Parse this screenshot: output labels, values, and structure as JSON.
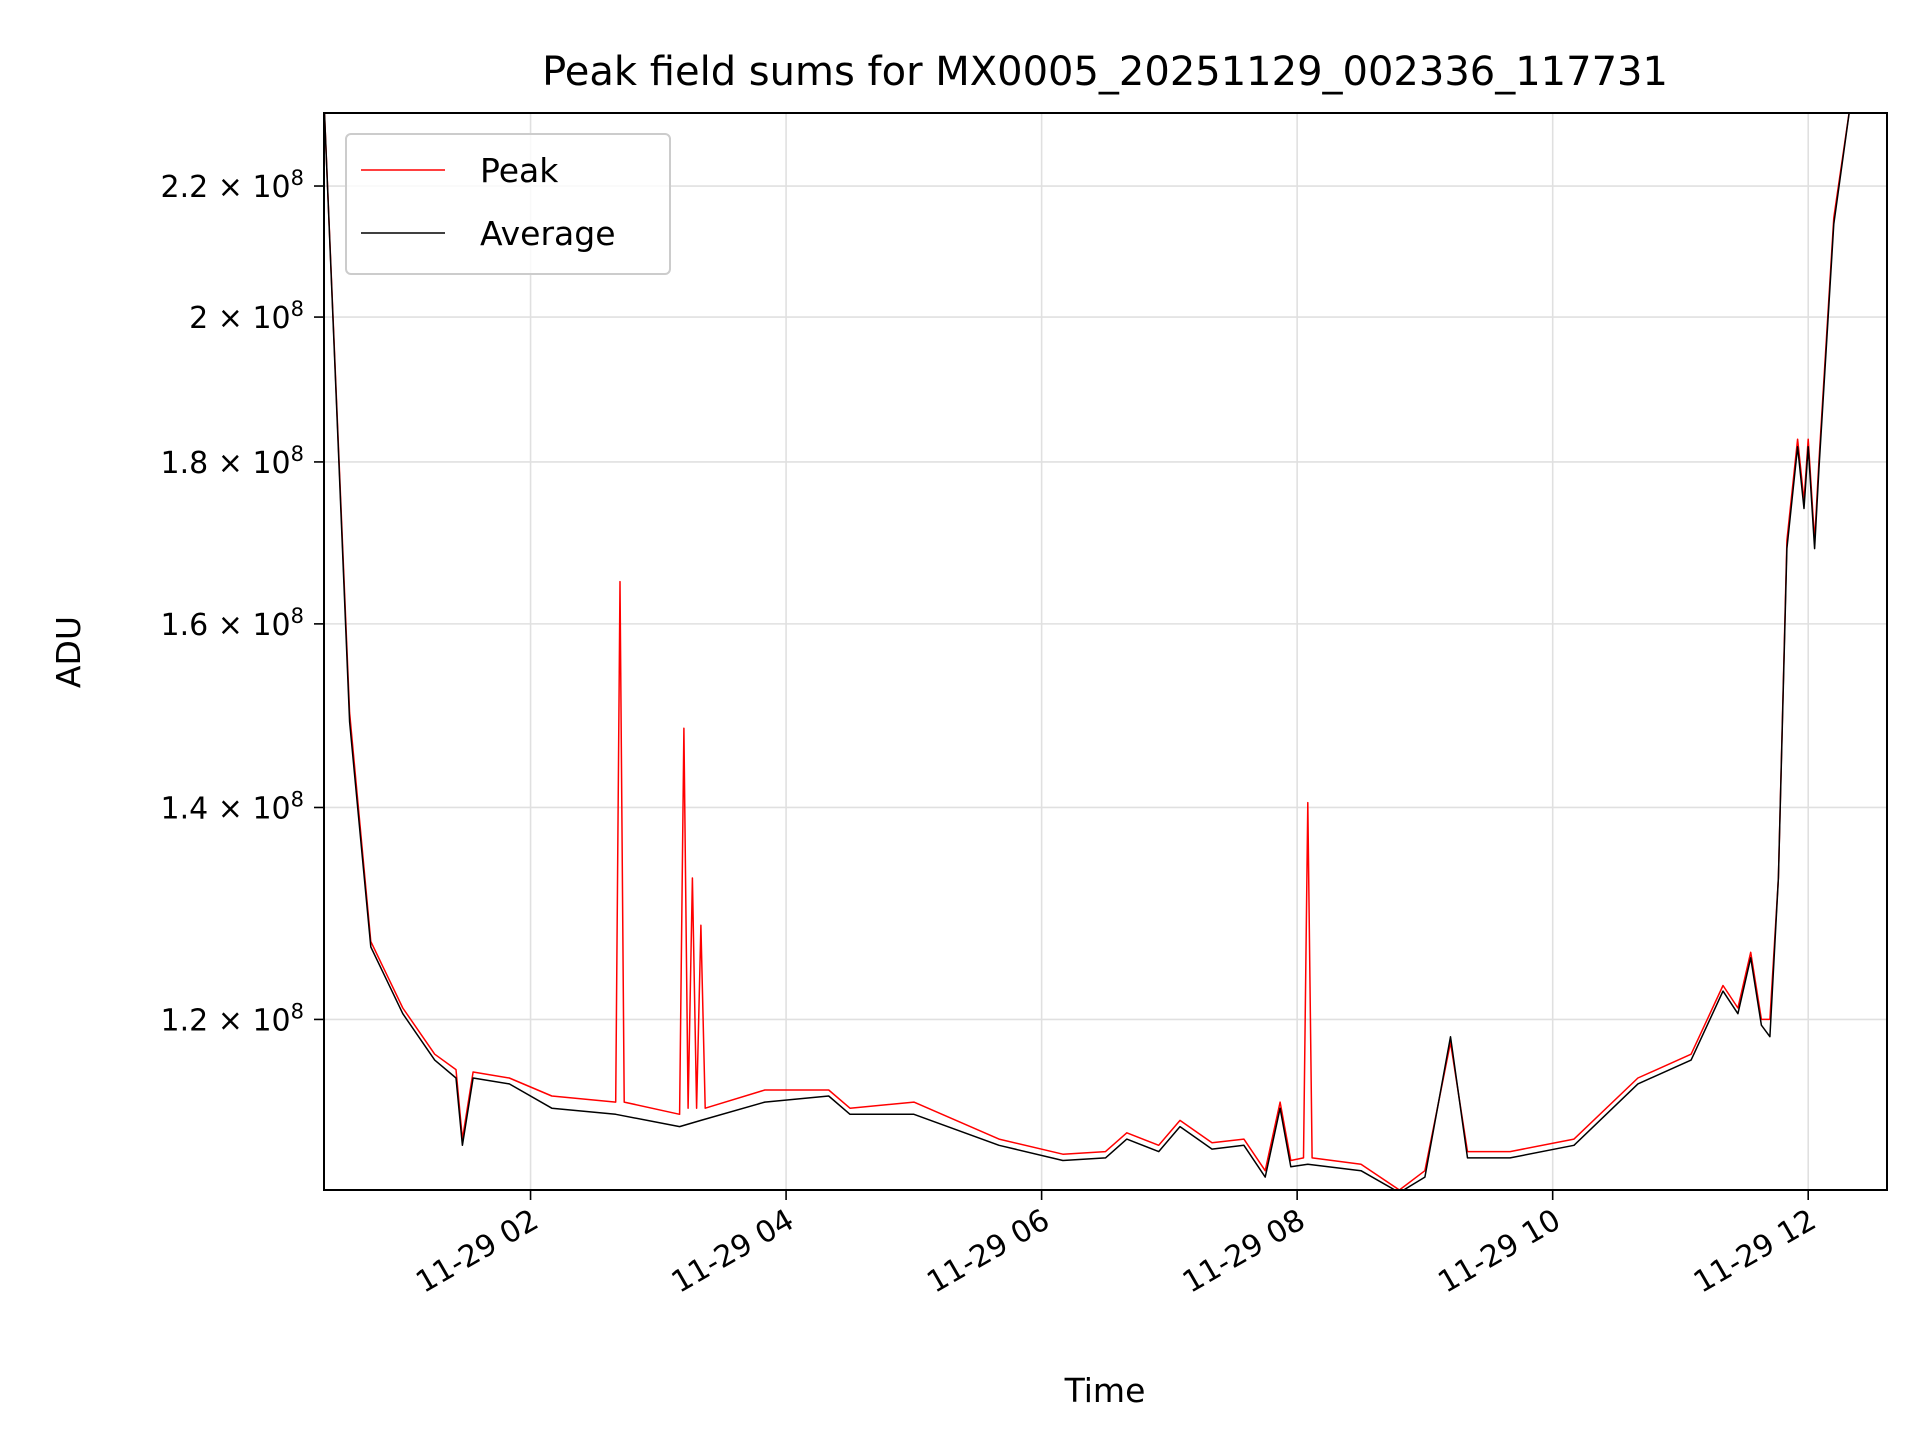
{
  "chart_data": {
    "type": "line",
    "title": "Peak field sums for MX0005_20251129_002336_117731",
    "xlabel": "Time",
    "ylabel": "ADU",
    "y_scale": "log",
    "xlim": [
      "2025-11-29 00:23",
      "2025-11-29 12:37"
    ],
    "ylim": [
      106000000.0,
      232000000.0
    ],
    "x_ticks": [
      {
        "label": "11-29 02",
        "value": "2025-11-29 02:00"
      },
      {
        "label": "11-29 04",
        "value": "2025-11-29 04:00"
      },
      {
        "label": "11-29 06",
        "value": "2025-11-29 06:00"
      },
      {
        "label": "11-29 08",
        "value": "2025-11-29 08:00"
      },
      {
        "label": "11-29 10",
        "value": "2025-11-29 10:00"
      },
      {
        "label": "11-29 12",
        "value": "2025-11-29 12:00"
      }
    ],
    "y_ticks": [
      {
        "mantissa": "1.2",
        "value": 120000000.0
      },
      {
        "mantissa": "1.4",
        "value": 140000000.0
      },
      {
        "mantissa": "1.6",
        "value": 160000000.0
      },
      {
        "mantissa": "1.8",
        "value": 180000000.0
      },
      {
        "mantissa": "2",
        "value": 200000000.0
      },
      {
        "mantissa": "2.2",
        "value": 220000000.0
      }
    ],
    "grid": true,
    "legend_position": "top-left",
    "series": [
      {
        "name": "Peak",
        "color": "#ff0000",
        "points": [
          [
            "2025-11-29 00:23",
            234000000.0
          ],
          [
            "2025-11-29 00:35",
            150000000.0
          ],
          [
            "2025-11-29 00:45",
            127000000.0
          ],
          [
            "2025-11-29 01:00",
            121000000.0
          ],
          [
            "2025-11-29 01:15",
            117000000.0
          ],
          [
            "2025-11-29 01:25",
            115700000.0
          ],
          [
            "2025-11-29 01:28",
            110000000.0
          ],
          [
            "2025-11-29 01:33",
            115500000.0
          ],
          [
            "2025-11-29 01:50",
            115000000.0
          ],
          [
            "2025-11-29 02:10",
            113500000.0
          ],
          [
            "2025-11-29 02:40",
            113000000.0
          ],
          [
            "2025-11-29 02:42",
            165000000.0
          ],
          [
            "2025-11-29 02:44",
            113000000.0
          ],
          [
            "2025-11-29 03:10",
            112000000.0
          ],
          [
            "2025-11-29 03:12",
            148300000.0
          ],
          [
            "2025-11-29 03:14",
            112500000.0
          ],
          [
            "2025-11-29 03:16",
            133000000.0
          ],
          [
            "2025-11-29 03:18",
            112500000.0
          ],
          [
            "2025-11-29 03:20",
            128500000.0
          ],
          [
            "2025-11-29 03:22",
            112500000.0
          ],
          [
            "2025-11-29 03:50",
            114000000.0
          ],
          [
            "2025-11-29 04:20",
            114000000.0
          ],
          [
            "2025-11-29 04:30",
            112500000.0
          ],
          [
            "2025-11-29 05:00",
            113000000.0
          ],
          [
            "2025-11-29 05:40",
            110000000.0
          ],
          [
            "2025-11-29 06:10",
            108800000.0
          ],
          [
            "2025-11-29 06:30",
            109000000.0
          ],
          [
            "2025-11-29 06:40",
            110500000.0
          ],
          [
            "2025-11-29 06:55",
            109500000.0
          ],
          [
            "2025-11-29 07:05",
            111500000.0
          ],
          [
            "2025-11-29 07:20",
            109700000.0
          ],
          [
            "2025-11-29 07:35",
            110000000.0
          ],
          [
            "2025-11-29 07:45",
            107500000.0
          ],
          [
            "2025-11-29 07:52",
            113000000.0
          ],
          [
            "2025-11-29 07:57",
            108300000.0
          ],
          [
            "2025-11-29 08:03",
            108500000.0
          ],
          [
            "2025-11-29 08:05",
            140500000.0
          ],
          [
            "2025-11-29 08:07",
            108500000.0
          ],
          [
            "2025-11-29 08:30",
            108000000.0
          ],
          [
            "2025-11-29 08:48",
            106000000.0
          ],
          [
            "2025-11-29 09:00",
            107500000.0
          ],
          [
            "2025-11-29 09:12",
            118000000.0
          ],
          [
            "2025-11-29 09:20",
            109000000.0
          ],
          [
            "2025-11-29 09:40",
            109000000.0
          ],
          [
            "2025-11-29 10:10",
            110000000.0
          ],
          [
            "2025-11-29 10:40",
            115000000.0
          ],
          [
            "2025-11-29 11:05",
            117000000.0
          ],
          [
            "2025-11-29 11:20",
            123000000.0
          ],
          [
            "2025-11-29 11:27",
            121000000.0
          ],
          [
            "2025-11-29 11:33",
            126000000.0
          ],
          [
            "2025-11-29 11:38",
            120000000.0
          ],
          [
            "2025-11-29 11:42",
            120000000.0
          ],
          [
            "2025-11-29 11:46",
            133000000.0
          ],
          [
            "2025-11-29 11:50",
            170000000.0
          ],
          [
            "2025-11-29 11:55",
            183000000.0
          ],
          [
            "2025-11-29 11:58",
            175000000.0
          ],
          [
            "2025-11-29 12:00",
            183000000.0
          ],
          [
            "2025-11-29 12:03",
            170000000.0
          ],
          [
            "2025-11-29 12:05",
            180000000.0
          ],
          [
            "2025-11-29 12:12",
            215000000.0
          ],
          [
            "2025-11-29 12:20",
            234000000.0
          ]
        ]
      },
      {
        "name": "Average",
        "color": "#000000",
        "points": [
          [
            "2025-11-29 00:23",
            234000000.0
          ],
          [
            "2025-11-29 00:35",
            149000000.0
          ],
          [
            "2025-11-29 00:45",
            126500000.0
          ],
          [
            "2025-11-29 01:00",
            120500000.0
          ],
          [
            "2025-11-29 01:15",
            116500000.0
          ],
          [
            "2025-11-29 01:25",
            115000000.0
          ],
          [
            "2025-11-29 01:28",
            109500000.0
          ],
          [
            "2025-11-29 01:33",
            115000000.0
          ],
          [
            "2025-11-29 01:50",
            114500000.0
          ],
          [
            "2025-11-29 02:10",
            112500000.0
          ],
          [
            "2025-11-29 02:40",
            112000000.0
          ],
          [
            "2025-11-29 03:10",
            111000000.0
          ],
          [
            "2025-11-29 03:20",
            111500000.0
          ],
          [
            "2025-11-29 03:50",
            113000000.0
          ],
          [
            "2025-11-29 04:20",
            113500000.0
          ],
          [
            "2025-11-29 04:30",
            112000000.0
          ],
          [
            "2025-11-29 05:00",
            112000000.0
          ],
          [
            "2025-11-29 05:40",
            109500000.0
          ],
          [
            "2025-11-29 06:10",
            108300000.0
          ],
          [
            "2025-11-29 06:30",
            108500000.0
          ],
          [
            "2025-11-29 06:40",
            110000000.0
          ],
          [
            "2025-11-29 06:55",
            109000000.0
          ],
          [
            "2025-11-29 07:05",
            111000000.0
          ],
          [
            "2025-11-29 07:20",
            109200000.0
          ],
          [
            "2025-11-29 07:35",
            109500000.0
          ],
          [
            "2025-11-29 07:45",
            107000000.0
          ],
          [
            "2025-11-29 07:52",
            112500000.0
          ],
          [
            "2025-11-29 07:57",
            107800000.0
          ],
          [
            "2025-11-29 08:05",
            108000000.0
          ],
          [
            "2025-11-29 08:30",
            107500000.0
          ],
          [
            "2025-11-29 08:48",
            105800000.0
          ],
          [
            "2025-11-29 09:00",
            107000000.0
          ],
          [
            "2025-11-29 09:12",
            118500000.0
          ],
          [
            "2025-11-29 09:20",
            108500000.0
          ],
          [
            "2025-11-29 09:40",
            108500000.0
          ],
          [
            "2025-11-29 10:10",
            109500000.0
          ],
          [
            "2025-11-29 10:40",
            114500000.0
          ],
          [
            "2025-11-29 11:05",
            116500000.0
          ],
          [
            "2025-11-29 11:20",
            122500000.0
          ],
          [
            "2025-11-29 11:27",
            120500000.0
          ],
          [
            "2025-11-29 11:33",
            125500000.0
          ],
          [
            "2025-11-29 11:38",
            119500000.0
          ],
          [
            "2025-11-29 11:42",
            118500000.0
          ],
          [
            "2025-11-29 11:46",
            133000000.0
          ],
          [
            "2025-11-29 11:50",
            169000000.0
          ],
          [
            "2025-11-29 11:55",
            182000000.0
          ],
          [
            "2025-11-29 11:58",
            174000000.0
          ],
          [
            "2025-11-29 12:00",
            182000000.0
          ],
          [
            "2025-11-29 12:03",
            169000000.0
          ],
          [
            "2025-11-29 12:05",
            179000000.0
          ],
          [
            "2025-11-29 12:12",
            214000000.0
          ],
          [
            "2025-11-29 12:20",
            234000000.0
          ]
        ]
      }
    ]
  }
}
